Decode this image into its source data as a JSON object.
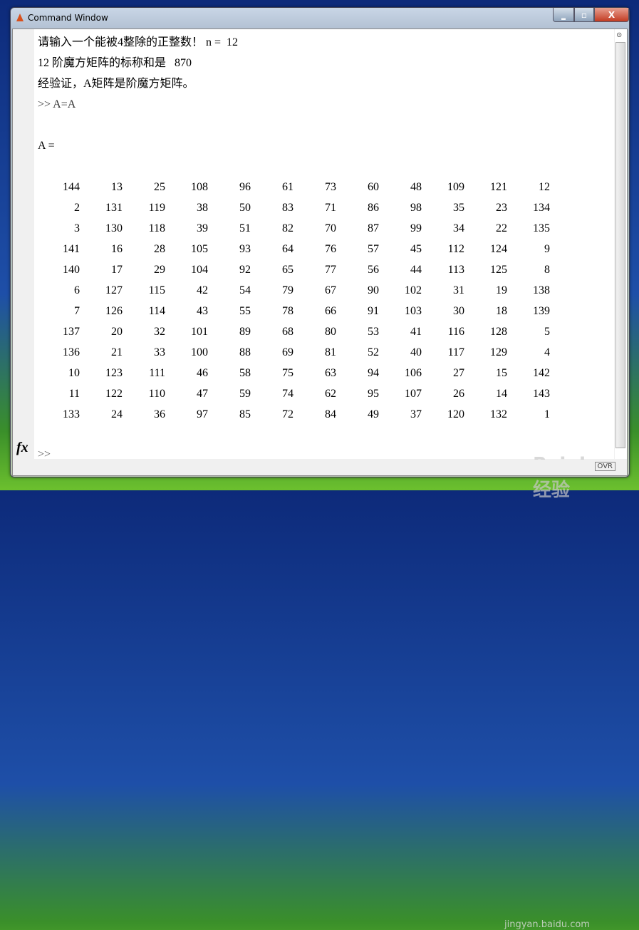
{
  "window": {
    "title": "Command Window",
    "minimize": "‗",
    "maximize": "▫",
    "close": "X"
  },
  "output": {
    "line1": "请输入一个能被4整除的正整数！ n =  12",
    "line2": "12 阶魔方矩阵的标称和是   870",
    "line3": "经验证，A矩阵是阶魔方矩阵。",
    "command": ">> A=A",
    "var_header": "A ="
  },
  "matrix": [
    [
      144,
      13,
      25,
      108,
      96,
      61,
      73,
      60,
      48,
      109,
      121,
      12
    ],
    [
      2,
      131,
      119,
      38,
      50,
      83,
      71,
      86,
      98,
      35,
      23,
      134
    ],
    [
      3,
      130,
      118,
      39,
      51,
      82,
      70,
      87,
      99,
      34,
      22,
      135
    ],
    [
      141,
      16,
      28,
      105,
      93,
      64,
      76,
      57,
      45,
      112,
      124,
      9
    ],
    [
      140,
      17,
      29,
      104,
      92,
      65,
      77,
      56,
      44,
      113,
      125,
      8
    ],
    [
      6,
      127,
      115,
      42,
      54,
      79,
      67,
      90,
      102,
      31,
      19,
      138
    ],
    [
      7,
      126,
      114,
      43,
      55,
      78,
      66,
      91,
      103,
      30,
      18,
      139
    ],
    [
      137,
      20,
      32,
      101,
      89,
      68,
      80,
      53,
      41,
      116,
      128,
      5
    ],
    [
      136,
      21,
      33,
      100,
      88,
      69,
      81,
      52,
      40,
      117,
      129,
      4
    ],
    [
      10,
      123,
      111,
      46,
      58,
      75,
      63,
      94,
      106,
      27,
      15,
      142
    ],
    [
      11,
      122,
      110,
      47,
      59,
      74,
      62,
      95,
      107,
      26,
      14,
      143
    ],
    [
      133,
      24,
      36,
      97,
      85,
      72,
      84,
      49,
      37,
      120,
      132,
      1
    ]
  ],
  "prompt": ">>",
  "fx_label": "fx",
  "status": {
    "ovr": "OVR"
  },
  "watermark": {
    "logo": "Bai du 经验",
    "url": "jingyan.baidu.com"
  }
}
